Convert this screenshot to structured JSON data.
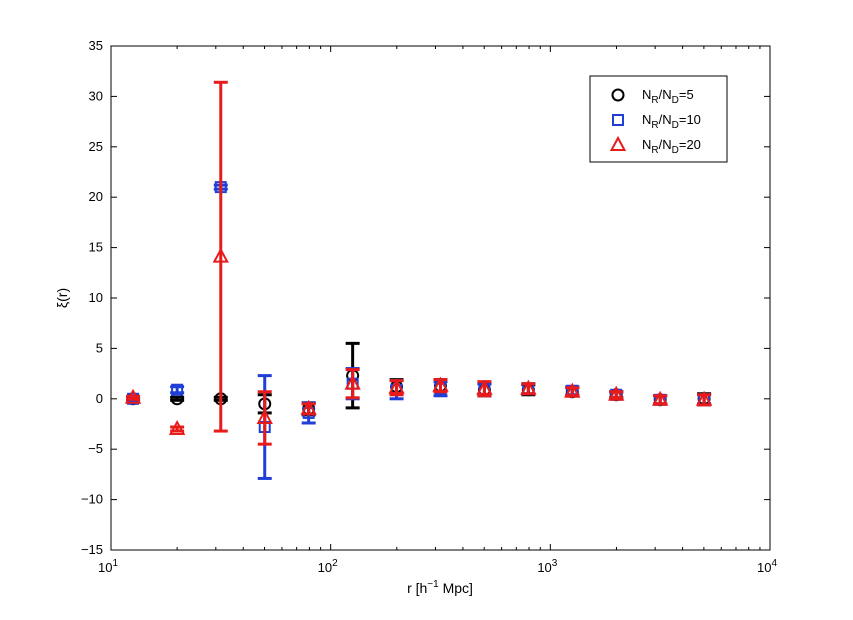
{
  "chart_data": {
    "type": "scatter",
    "title": "",
    "xlabel_base": "r  [h",
    "xlabel_sup": "−1",
    "xlabel_tail": " Mpc]",
    "ylabel": "ξ(r)",
    "xscale": "log",
    "xlim": [
      10,
      10000
    ],
    "ylim": [
      -15,
      35
    ],
    "grid": false,
    "x_ticks": [
      {
        "value": 10,
        "base": "10",
        "exp": "1"
      },
      {
        "value": 100,
        "base": "10",
        "exp": "2"
      },
      {
        "value": 1000,
        "base": "10",
        "exp": "3"
      },
      {
        "value": 10000,
        "base": "10",
        "exp": "4"
      }
    ],
    "y_ticks": [
      -15,
      -10,
      -5,
      0,
      5,
      10,
      15,
      20,
      25,
      30,
      35
    ],
    "y_tick_labels": [
      "−15",
      "−10",
      "−5",
      "0",
      "5",
      "10",
      "15",
      "20",
      "25",
      "30",
      "35"
    ],
    "legend_position": "top-right",
    "series": [
      {
        "name": "N_R/N_D=5",
        "legend": {
          "n": "N",
          "sub1": "R",
          "slash": "/N",
          "sub2": "D",
          "val": "=5"
        },
        "marker": "circle",
        "color": "#000000",
        "points": [
          {
            "x": 12.6,
            "y": 0.0,
            "err": 0.15
          },
          {
            "x": 20.0,
            "y": 0.0,
            "err": 0.15
          },
          {
            "x": 31.6,
            "y": 0.0,
            "err": 0.15
          },
          {
            "x": 50.1,
            "y": -0.5,
            "err": 0.9
          },
          {
            "x": 79.4,
            "y": -1.0,
            "err": 0.6
          },
          {
            "x": 125.9,
            "y": 2.3,
            "err": 3.2
          },
          {
            "x": 199.5,
            "y": 1.2,
            "err": 0.7
          },
          {
            "x": 316.2,
            "y": 1.3,
            "err": 0.6
          },
          {
            "x": 501.2,
            "y": 0.9,
            "err": 0.6
          },
          {
            "x": 794.3,
            "y": 0.9,
            "err": 0.5
          },
          {
            "x": 1258.9,
            "y": 0.7,
            "err": 0.4
          },
          {
            "x": 1995.3,
            "y": 0.4,
            "err": 0.3
          },
          {
            "x": 3162.3,
            "y": -0.1,
            "err": 0.4
          },
          {
            "x": 5011.9,
            "y": 0.0,
            "err": 0.5
          }
        ]
      },
      {
        "name": "N_R/N_D=10",
        "legend": {
          "n": "N",
          "sub1": "R",
          "slash": "/N",
          "sub2": "D",
          "val": "=10"
        },
        "marker": "square",
        "color": "#1f3fd6",
        "points": [
          {
            "x": 12.6,
            "y": 0.0,
            "err": 0.15
          },
          {
            "x": 20.0,
            "y": 0.9,
            "err": 0.3
          },
          {
            "x": 31.6,
            "y": 21.0,
            "err": 0.2
          },
          {
            "x": 50.1,
            "y": -2.8,
            "err": 5.1
          },
          {
            "x": 79.4,
            "y": -1.4,
            "err": 1.0
          },
          {
            "x": 125.9,
            "y": 1.5,
            "err": 1.5
          },
          {
            "x": 199.5,
            "y": 0.9,
            "err": 0.9
          },
          {
            "x": 316.2,
            "y": 1.0,
            "err": 0.7
          },
          {
            "x": 501.2,
            "y": 0.9,
            "err": 0.6
          },
          {
            "x": 794.3,
            "y": 1.0,
            "err": 0.5
          },
          {
            "x": 1258.9,
            "y": 0.8,
            "err": 0.4
          },
          {
            "x": 1995.3,
            "y": 0.4,
            "err": 0.3
          },
          {
            "x": 3162.3,
            "y": -0.1,
            "err": 0.4
          },
          {
            "x": 5011.9,
            "y": -0.1,
            "err": 0.5
          }
        ]
      },
      {
        "name": "N_R/N_D=20",
        "legend": {
          "n": "N",
          "sub1": "R",
          "slash": "/N",
          "sub2": "D",
          "val": "=20"
        },
        "marker": "triangle",
        "color": "#e81b1b",
        "points": [
          {
            "x": 12.6,
            "y": 0.1,
            "err": 0.15
          },
          {
            "x": 20.0,
            "y": -3.0,
            "err": 0.2
          },
          {
            "x": 31.6,
            "y": 14.1,
            "err": 17.3
          },
          {
            "x": 50.1,
            "y": -1.9,
            "err": 2.6
          },
          {
            "x": 79.4,
            "y": -1.0,
            "err": 0.5
          },
          {
            "x": 125.9,
            "y": 1.5,
            "err": 1.4
          },
          {
            "x": 199.5,
            "y": 1.1,
            "err": 0.7
          },
          {
            "x": 316.2,
            "y": 1.3,
            "err": 0.6
          },
          {
            "x": 501.2,
            "y": 1.0,
            "err": 0.7
          },
          {
            "x": 794.3,
            "y": 1.0,
            "err": 0.5
          },
          {
            "x": 1258.9,
            "y": 0.7,
            "err": 0.4
          },
          {
            "x": 1995.3,
            "y": 0.4,
            "err": 0.3
          },
          {
            "x": 3162.3,
            "y": -0.1,
            "err": 0.4
          },
          {
            "x": 5011.9,
            "y": -0.1,
            "err": 0.5
          }
        ]
      }
    ]
  }
}
